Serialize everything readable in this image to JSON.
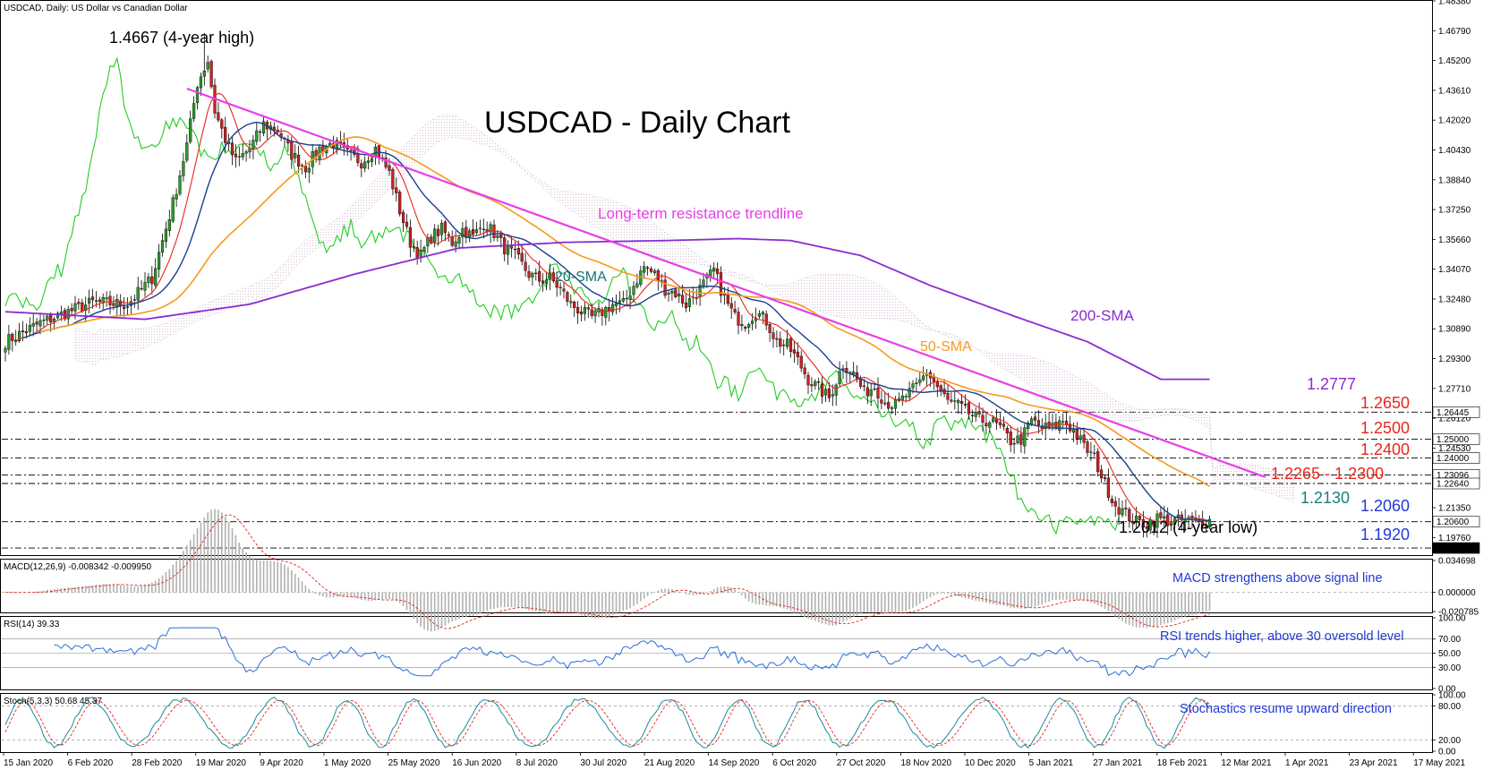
{
  "window": {
    "title": "USDCAD, Daily:  US Dollar vs Canadian Dollar"
  },
  "chart_data": {
    "type": "candlestick",
    "title": "USDCAD - Daily Chart",
    "symbol": "USDCAD",
    "timeframe": "Daily",
    "x_tick_labels": [
      "15 Jan 2020",
      "6 Feb 2020",
      "28 Feb 2020",
      "19 Mar 2020",
      "9 Apr 2020",
      "1 May 2020",
      "25 May 2020",
      "16 Jun 2020",
      "8 Jul 2020",
      "30 Jul 2020",
      "21 Aug 2020",
      "14 Sep 2020",
      "6 Oct 2020",
      "27 Oct 2020",
      "18 Nov 2020",
      "10 Dec 2020",
      "5 Jan 2021",
      "27 Jan 2021",
      "18 Feb 2021",
      "12 Mar 2021",
      "1 Apr 2021",
      "23 Apr 2021",
      "17 May 2021"
    ],
    "y_axis": {
      "ylim": [
        1.1882,
        1.4838
      ],
      "tick_labels": [
        "1.48380",
        "1.46790",
        "1.45200",
        "1.43610",
        "1.42020",
        "1.40430",
        "1.38840",
        "1.37250",
        "1.35660",
        "1.34070",
        "1.32480",
        "1.30890",
        "1.29300",
        "1.27710",
        "1.26120",
        "1.24530",
        "1.22940",
        "1.21350",
        "1.19760"
      ],
      "tick_values": [
        1.4838,
        1.4679,
        1.452,
        1.4361,
        1.4202,
        1.4043,
        1.3884,
        1.3725,
        1.3566,
        1.3407,
        1.3248,
        1.3089,
        1.293,
        1.2771,
        1.2612,
        1.2453,
        1.2294,
        1.2135,
        1.1976
      ],
      "price_tags": [
        {
          "label": "1.26445",
          "value": 1.26445,
          "bg": "#ffffff",
          "fg": "#000000"
        },
        {
          "label": "1.25000",
          "value": 1.25,
          "bg": "#ffffff",
          "fg": "#000000"
        },
        {
          "label": "1.24000",
          "value": 1.24,
          "bg": "#ffffff",
          "fg": "#000000"
        },
        {
          "label": "1.23096",
          "value": 1.23096,
          "bg": "#ffffff",
          "fg": "#000000"
        },
        {
          "label": "1.22640",
          "value": 1.2264,
          "bg": "#ffffff",
          "fg": "#000000"
        },
        {
          "label": "1.20600",
          "value": 1.206,
          "bg": "#ffffff",
          "fg": "#000000"
        },
        {
          "label": "1.19200",
          "value": 1.192,
          "bg": "#000000",
          "fg": "#ffffff"
        }
      ]
    },
    "levels": [
      {
        "label": "1.2650",
        "value": 1.265,
        "color": "#e8261c"
      },
      {
        "label": "1.2500",
        "value": 1.25,
        "color": "#e8261c"
      },
      {
        "label": "1.2400",
        "value": 1.24,
        "color": "#e8261c"
      },
      {
        "label": "1.2265 - 1.2300",
        "value": 1.2265,
        "value2": 1.23,
        "color": "#e8261c"
      },
      {
        "label": "1.2060",
        "value": 1.206,
        "color": "#2038d8"
      },
      {
        "label": "1.1920",
        "value": 1.192,
        "color": "#2038d8"
      }
    ],
    "annotations": {
      "high": "1.4667 (4-year high)",
      "low": "1.2012 (4-year low)",
      "trendline": "Long-term resistance trendline",
      "sma20": "20-SMA",
      "sma50": "50-SMA",
      "sma200": "200-SMA",
      "sma200_value": "1.2777",
      "sma20_value": "1.2130"
    },
    "series_colors": {
      "sma20": "#1a3f8c",
      "sma50": "#f59a1e",
      "sma200": "#8a2bd2",
      "tenkan": "#e8261c",
      "chikou": "#22cc22",
      "cloud": "#c8a8c8",
      "trendline": "#e83ee8",
      "bull": "#2a9a2a",
      "bear": "#cc2020"
    },
    "close_anchors": [
      [
        0,
        1.302
      ],
      [
        10,
        1.312
      ],
      [
        18,
        1.318
      ],
      [
        25,
        1.323
      ],
      [
        35,
        1.322
      ],
      [
        42,
        1.336
      ],
      [
        48,
        1.376
      ],
      [
        52,
        1.407
      ],
      [
        55,
        1.44
      ],
      [
        58,
        1.452
      ],
      [
        60,
        1.425
      ],
      [
        63,
        1.41
      ],
      [
        66,
        1.398
      ],
      [
        70,
        1.405
      ],
      [
        74,
        1.418
      ],
      [
        78,
        1.415
      ],
      [
        82,
        1.402
      ],
      [
        86,
        1.395
      ],
      [
        90,
        1.405
      ],
      [
        94,
        1.408
      ],
      [
        98,
        1.402
      ],
      [
        102,
        1.398
      ],
      [
        106,
        1.405
      ],
      [
        110,
        1.392
      ],
      [
        113,
        1.372
      ],
      [
        116,
        1.355
      ],
      [
        119,
        1.348
      ],
      [
        122,
        1.358
      ],
      [
        125,
        1.362
      ],
      [
        128,
        1.355
      ],
      [
        131,
        1.362
      ],
      [
        134,
        1.358
      ],
      [
        137,
        1.365
      ],
      [
        140,
        1.36
      ],
      [
        143,
        1.352
      ],
      [
        146,
        1.348
      ],
      [
        150,
        1.338
      ],
      [
        153,
        1.335
      ],
      [
        156,
        1.336
      ],
      [
        159,
        1.33
      ],
      [
        162,
        1.322
      ],
      [
        165,
        1.318
      ],
      [
        168,
        1.315
      ],
      [
        171,
        1.318
      ],
      [
        174,
        1.322
      ],
      [
        177,
        1.322
      ],
      [
        180,
        1.332
      ],
      [
        183,
        1.342
      ],
      [
        186,
        1.338
      ],
      [
        189,
        1.33
      ],
      [
        192,
        1.328
      ],
      [
        195,
        1.322
      ],
      [
        198,
        1.328
      ],
      [
        201,
        1.335
      ],
      [
        203,
        1.34
      ],
      [
        206,
        1.325
      ],
      [
        209,
        1.315
      ],
      [
        212,
        1.312
      ],
      [
        215,
        1.318
      ],
      [
        218,
        1.313
      ],
      [
        221,
        1.302
      ],
      [
        224,
        1.3
      ],
      [
        227,
        1.292
      ],
      [
        230,
        1.282
      ],
      [
        233,
        1.277
      ],
      [
        236,
        1.272
      ],
      [
        240,
        1.29
      ],
      [
        243,
        1.285
      ],
      [
        246,
        1.275
      ],
      [
        249,
        1.278
      ],
      [
        252,
        1.27
      ],
      [
        255,
        1.268
      ],
      [
        258,
        1.273
      ],
      [
        261,
        1.278
      ],
      [
        264,
        1.286
      ],
      [
        267,
        1.278
      ],
      [
        270,
        1.27
      ],
      [
        273,
        1.268
      ],
      [
        276,
        1.264
      ],
      [
        279,
        1.26
      ],
      [
        282,
        1.26
      ],
      [
        285,
        1.256
      ],
      [
        288,
        1.249
      ],
      [
        291,
        1.25
      ],
      [
        294,
        1.26
      ],
      [
        297,
        1.256
      ],
      [
        300,
        1.256
      ],
      [
        303,
        1.26
      ],
      [
        306,
        1.255
      ],
      [
        309,
        1.246
      ],
      [
        312,
        1.24
      ],
      [
        315,
        1.226
      ],
      [
        318,
        1.215
      ],
      [
        321,
        1.21
      ],
      [
        324,
        1.206
      ],
      [
        327,
        1.205
      ],
      [
        330,
        1.208
      ],
      [
        333,
        1.2065
      ]
    ],
    "macd": {
      "label": "MACD(12,26,9) -0.008342 -0.009950",
      "ylim": [
        -0.02078,
        0.0347
      ],
      "tick_labels": [
        "0.034698",
        "0.000000",
        "-0.020785"
      ],
      "annotation": "MACD strengthens above signal line"
    },
    "rsi": {
      "label": "RSI(14) 39.33",
      "ylim": [
        0,
        100
      ],
      "tick_labels": [
        "100.00",
        "70.00",
        "50.00",
        "30.00",
        "0.00"
      ],
      "annotation": "RSI trends higher, above 30 oversold level"
    },
    "stoch": {
      "label": "Stoch(5,3,3) 50.68 45.37",
      "ylim": [
        0,
        100
      ],
      "tick_labels": [
        "100.00",
        "80.00",
        "20.00",
        "0.00"
      ],
      "annotation": "Stochastics resume upward direction"
    }
  }
}
